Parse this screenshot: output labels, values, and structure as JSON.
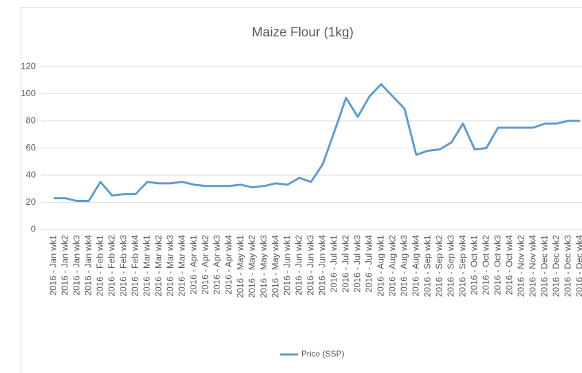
{
  "chart_data": {
    "type": "line",
    "title": "Maize Flour (1kg)",
    "categories": [
      "2016 - Jan wk1",
      "2016 - Jan wk2",
      "2016 - Jan wk3",
      "2016 - Jan wk4",
      "2016 - Feb wk1",
      "2016 - Feb wk2",
      "2016 - Feb wk3",
      "2016 - Feb wk4",
      "2016 - Mar wk1",
      "2016 - Mar wk2",
      "2016 - Mar wk3",
      "2016 - Mar wk4",
      "2016 - Apr wk1",
      "2016 - Apr wk2",
      "2016 - Apr wk3",
      "2016 - Apr wk4",
      "2016 - May wk1",
      "2016 - May wk2",
      "2016 - May wk3",
      "2016 - May wk4",
      "2016 - Jun wk1",
      "2016 - Jun wk2",
      "2016 - Jun wk3",
      "2016 - Jun wk4",
      "2016 - Jul wk1",
      "2016 - Jul wk2",
      "2016 - Jul wk3",
      "2016 - Jul wk4",
      "2016 - Aug wk1",
      "2016 - Aug wk2",
      "2016 - Aug wk3",
      "2016 - Aug wk4",
      "2016 - Sep wk1",
      "2016 - Sep wk2",
      "2016 - Sep wk3",
      "2016 - Sep wk4",
      "2016 - Oct wk1",
      "2016 - Oct wk2",
      "2016 - Oct wk3",
      "2016 - Oct wk4",
      "2016 - Nov wk2",
      "2016 - Nov wk4",
      "2016 - Dec wk1",
      "2016 - Dec wk2",
      "2016 - Dec wk3",
      "2016 - Dec wk4"
    ],
    "series": [
      {
        "name": "Price (SSP)",
        "color": "#5b9bd5",
        "values": [
          23,
          23,
          21,
          21,
          35,
          25,
          26,
          26,
          35,
          34,
          34,
          35,
          33,
          32,
          32,
          32,
          33,
          31,
          32,
          34,
          33,
          38,
          35,
          48,
          72,
          97,
          83,
          98,
          107,
          98,
          89,
          55,
          58,
          59,
          64,
          78,
          59,
          60,
          75,
          75,
          75,
          75,
          78,
          78,
          80,
          80
        ]
      }
    ],
    "ylim": [
      0,
      120
    ],
    "yticks": [
      0,
      20,
      40,
      60,
      80,
      100,
      120
    ],
    "grid": true,
    "legend": "bottom"
  }
}
